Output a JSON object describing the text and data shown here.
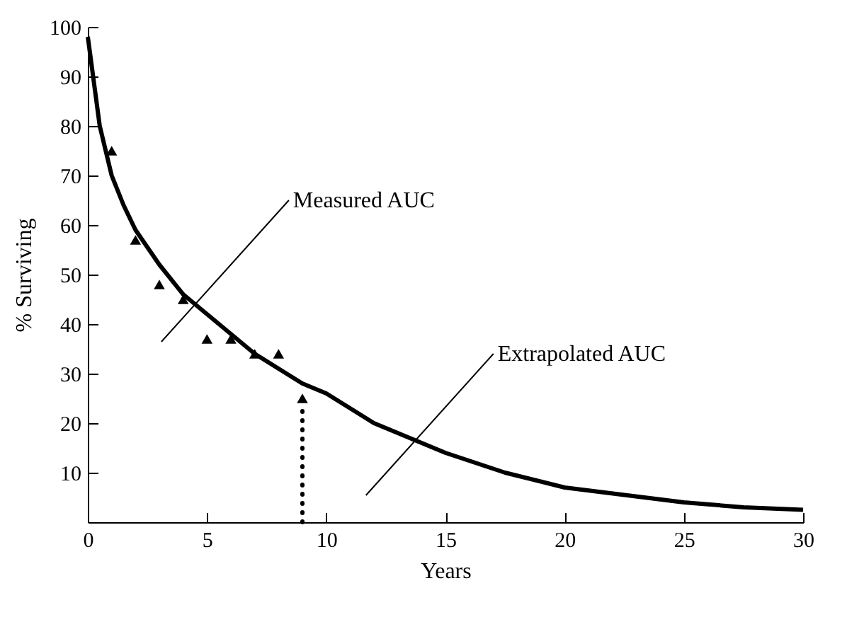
{
  "chart_data": {
    "type": "line",
    "xlabel": "Years",
    "ylabel": "% Surviving",
    "xlim": [
      0,
      30
    ],
    "ylim": [
      0,
      100
    ],
    "xticks": [
      0,
      5,
      10,
      15,
      20,
      25,
      30
    ],
    "yticks": [
      10,
      20,
      30,
      40,
      50,
      60,
      70,
      80,
      90,
      100
    ],
    "grid": false,
    "series": [
      {
        "color": "#000000",
        "marker": "none",
        "line_style": "solid",
        "x": [
          0,
          0.5,
          1,
          1.5,
          2,
          3,
          4,
          5,
          6,
          7,
          8,
          9,
          10,
          12,
          15,
          17.5,
          20,
          22.5,
          25,
          27.5,
          30
        ],
        "values": [
          98,
          80,
          70,
          64,
          59,
          52,
          46,
          42,
          38,
          34,
          31,
          28,
          26,
          20,
          14,
          10,
          7,
          5.5,
          4,
          3,
          2.5
        ]
      },
      {
        "type": "scatter",
        "color": "#000000",
        "marker": "triangle",
        "x": [
          1,
          2,
          3,
          4,
          5,
          6,
          7,
          8,
          9
        ],
        "values": [
          75,
          57,
          48,
          45,
          37,
          37,
          34,
          34,
          25
        ]
      }
    ],
    "ref_lines": [
      {
        "axis": "x",
        "value": 9,
        "line_style": "dotted",
        "color": "#000000"
      }
    ],
    "annotations": [
      "Measured AUC",
      "Extrapolated AUC"
    ]
  }
}
